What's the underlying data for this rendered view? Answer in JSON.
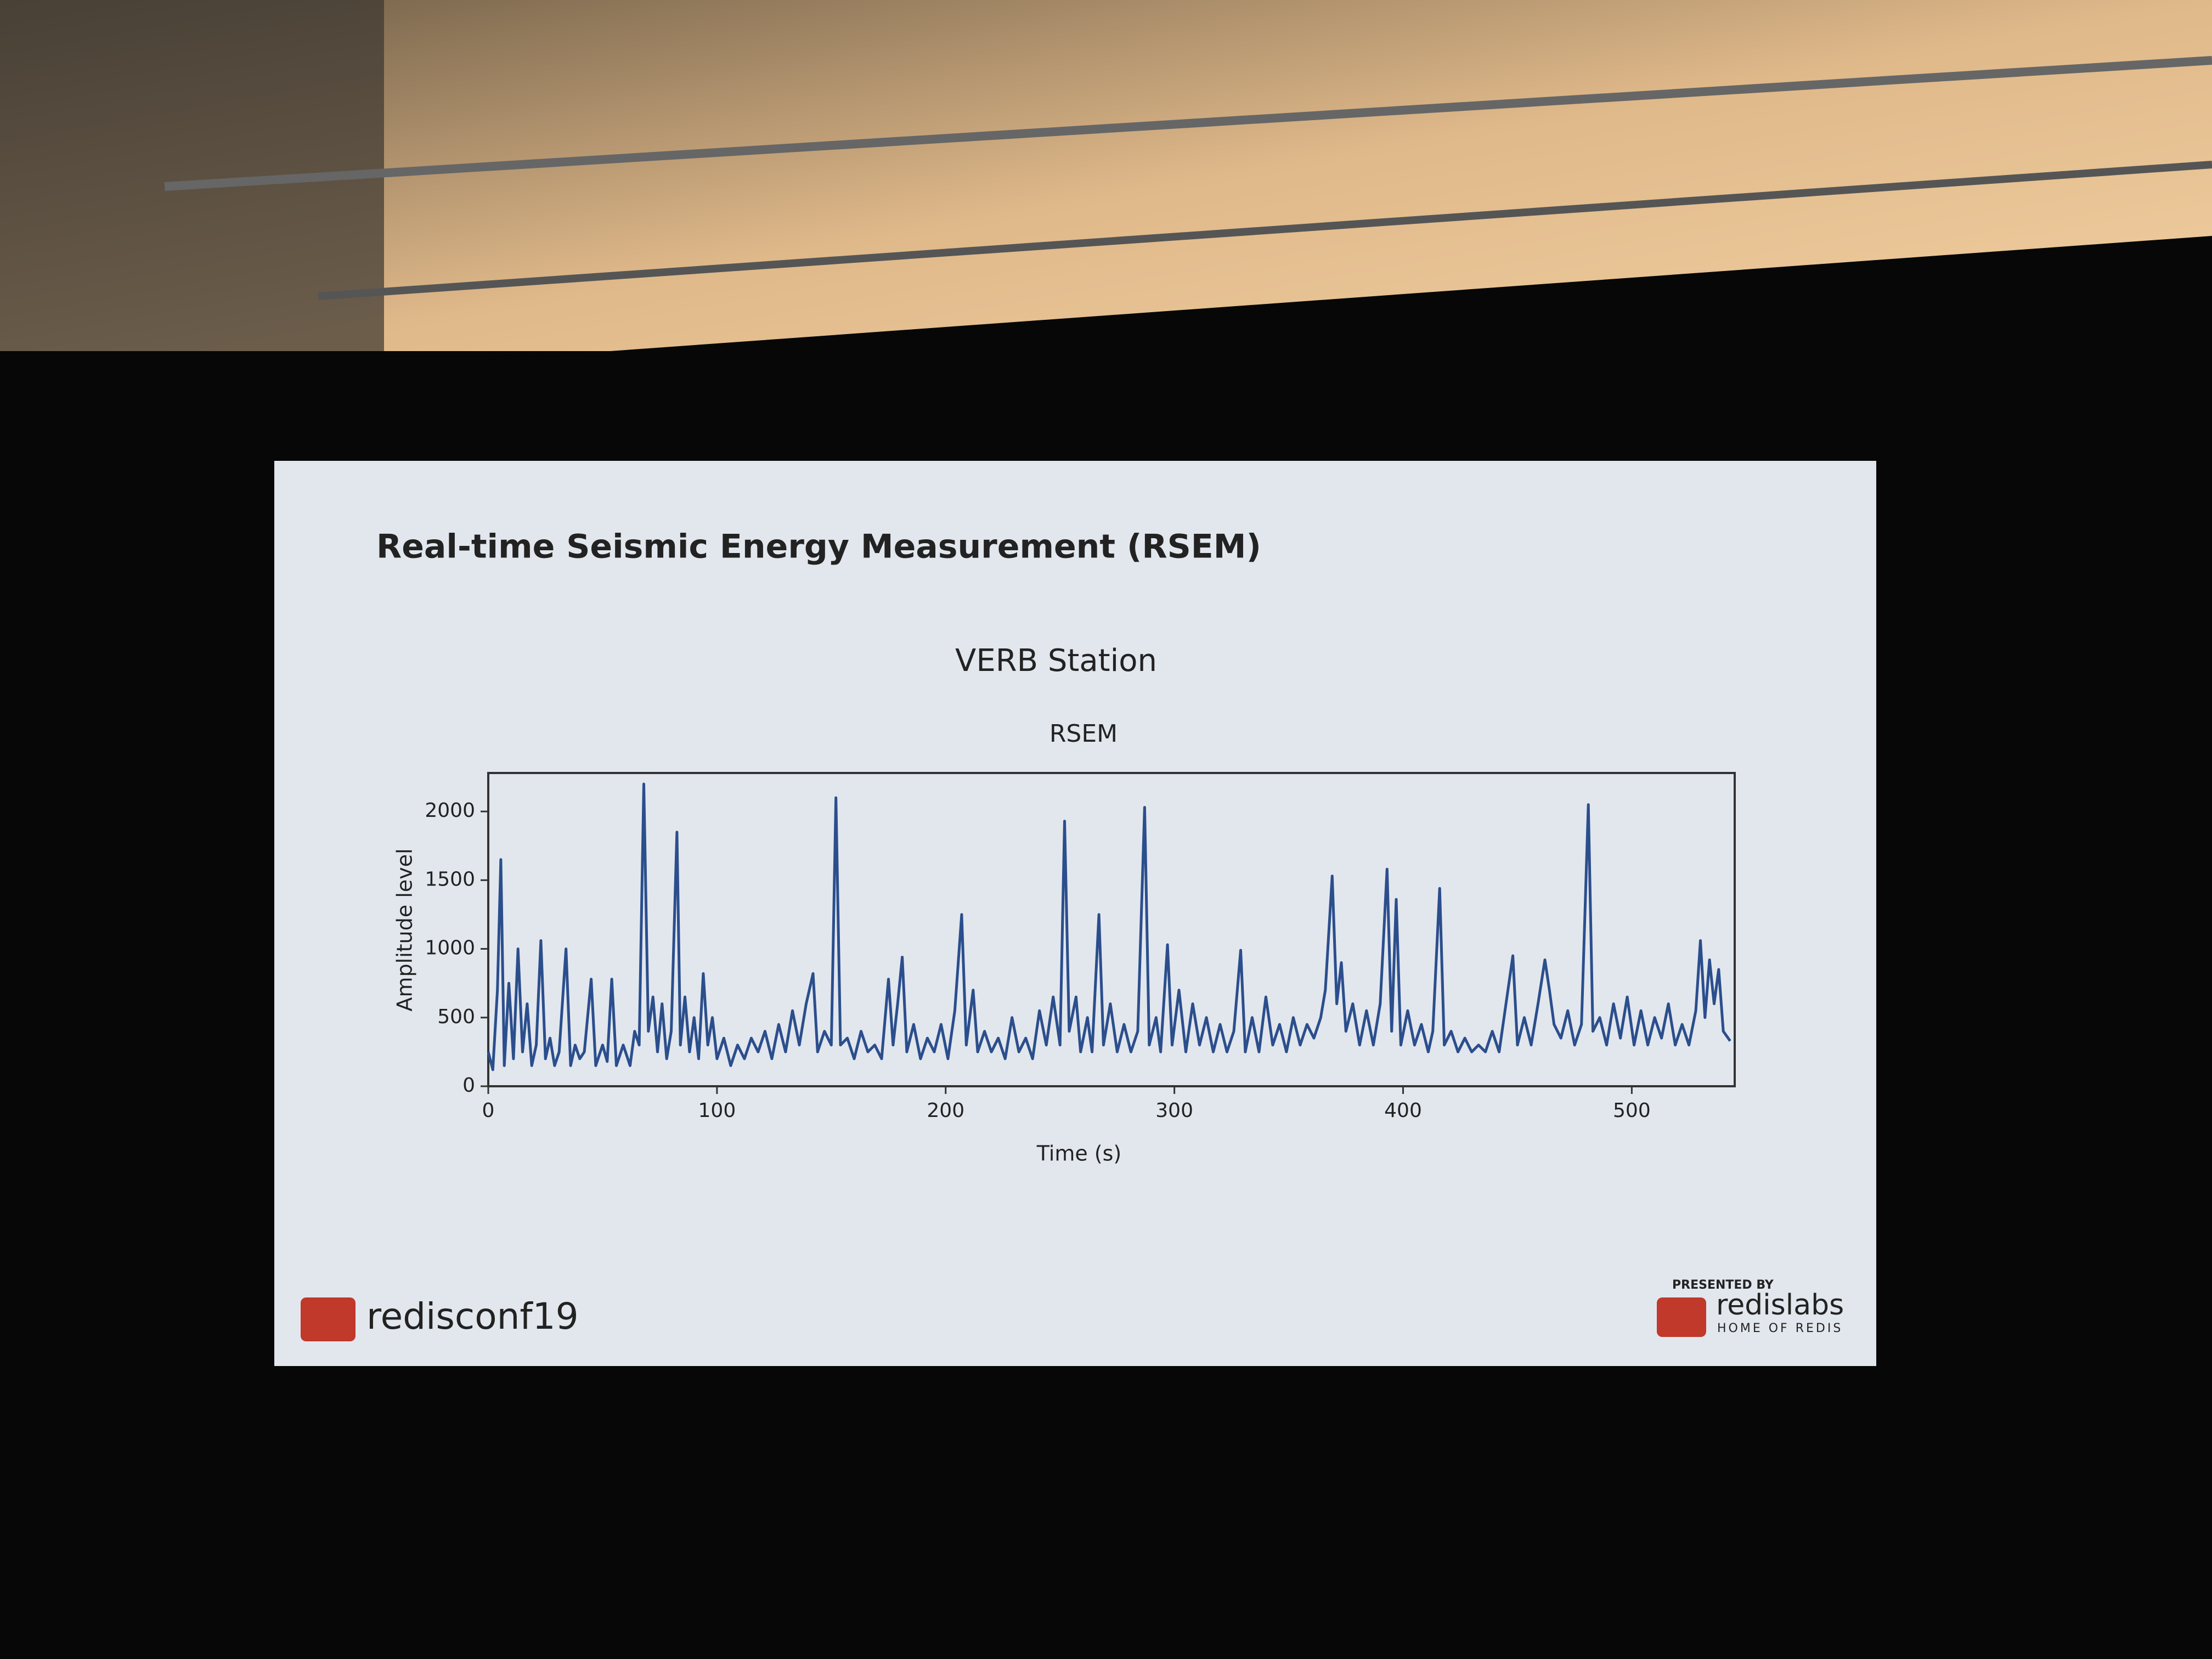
{
  "slide": {
    "heading": "Real-time Seismic Energy Measurement (RSEM)",
    "logo_left": "redisconf19",
    "presented_by": "PRESENTED BY",
    "logo_right": "redislabs",
    "logo_right_tagline": "HOME OF REDIS"
  },
  "chart_data": {
    "type": "line",
    "title": "VERB Station",
    "subtitle": "RSEM",
    "x_label": "Time (s)",
    "y_label": "Amplitude level",
    "color": "#2b4e8c",
    "xlim": [
      0,
      545
    ],
    "ylim": [
      0,
      2280
    ],
    "xticks": [
      0,
      100,
      200,
      300,
      400,
      500
    ],
    "yticks": [
      0,
      500,
      1000,
      1500,
      2000
    ],
    "x": [
      0,
      2,
      4,
      5.5,
      7,
      9,
      11,
      13,
      15,
      17,
      19,
      21,
      23,
      25,
      27,
      29,
      31,
      34,
      36,
      38,
      40,
      42,
      45,
      47,
      50,
      52,
      54,
      56,
      59,
      62,
      64,
      66,
      68,
      70,
      72,
      74,
      76,
      78,
      80,
      82.5,
      84,
      86,
      88,
      90,
      92,
      94,
      96,
      98,
      100,
      103,
      106,
      109,
      112,
      115,
      118,
      121,
      124,
      127,
      130,
      133,
      136,
      139,
      142,
      144,
      147,
      150,
      152,
      154,
      157,
      160,
      163,
      166,
      169,
      172,
      175,
      177,
      179,
      181,
      183,
      186,
      189,
      192,
      195,
      198,
      201,
      204,
      207,
      209,
      212,
      214,
      217,
      220,
      223,
      226,
      229,
      232,
      235,
      238,
      241,
      244,
      247,
      250,
      252,
      254,
      257,
      259,
      262,
      264,
      267,
      269,
      272,
      275,
      278,
      281,
      284,
      287,
      289,
      292,
      294,
      297,
      299,
      302,
      305,
      308,
      311,
      314,
      317,
      320,
      323,
      326,
      329,
      331,
      334,
      337,
      340,
      343,
      346,
      349,
      352,
      355,
      358,
      361,
      364,
      366,
      369,
      371,
      373,
      375,
      378,
      381,
      384,
      387,
      390,
      393,
      395,
      397,
      399,
      402,
      405,
      408,
      411,
      413,
      416,
      418,
      421,
      424,
      427,
      430,
      433,
      436,
      439,
      442,
      445,
      448,
      450,
      453,
      456,
      459,
      462,
      464,
      466,
      469,
      472,
      475,
      478,
      481,
      483,
      486,
      489,
      492,
      495,
      498,
      501,
      504,
      507,
      510,
      513,
      516,
      519,
      522,
      525,
      528,
      530,
      532,
      534,
      536,
      538,
      540,
      543
    ],
    "values": [
      250,
      120,
      700,
      1650,
      150,
      750,
      200,
      1000,
      250,
      600,
      150,
      300,
      1060,
      200,
      350,
      150,
      250,
      1000,
      150,
      300,
      200,
      250,
      780,
      150,
      300,
      180,
      780,
      150,
      300,
      150,
      400,
      300,
      2200,
      400,
      650,
      250,
      600,
      200,
      400,
      1850,
      300,
      650,
      250,
      500,
      200,
      820,
      300,
      500,
      200,
      350,
      150,
      300,
      200,
      350,
      250,
      400,
      200,
      450,
      250,
      550,
      300,
      600,
      820,
      250,
      400,
      300,
      2100,
      300,
      350,
      200,
      400,
      250,
      300,
      200,
      780,
      300,
      600,
      940,
      250,
      450,
      200,
      350,
      250,
      450,
      200,
      550,
      1250,
      300,
      700,
      250,
      400,
      250,
      350,
      200,
      500,
      250,
      350,
      200,
      550,
      300,
      650,
      300,
      1930,
      400,
      650,
      250,
      500,
      250,
      1250,
      300,
      600,
      250,
      450,
      250,
      400,
      2030,
      300,
      500,
      250,
      1030,
      300,
      700,
      250,
      600,
      300,
      500,
      250,
      450,
      250,
      400,
      990,
      250,
      500,
      250,
      650,
      300,
      450,
      250,
      500,
      300,
      450,
      350,
      500,
      700,
      1530,
      600,
      900,
      400,
      600,
      300,
      550,
      300,
      600,
      1580,
      400,
      1360,
      300,
      550,
      300,
      450,
      250,
      400,
      1440,
      300,
      400,
      250,
      350,
      250,
      300,
      250,
      400,
      250,
      600,
      950,
      300,
      500,
      300,
      600,
      920,
      700,
      450,
      350,
      550,
      300,
      450,
      2050,
      400,
      500,
      300,
      600,
      350,
      650,
      300,
      550,
      300,
      500,
      350,
      600,
      300,
      450,
      300,
      550,
      1060,
      500,
      920,
      600,
      850,
      400,
      330
    ]
  }
}
